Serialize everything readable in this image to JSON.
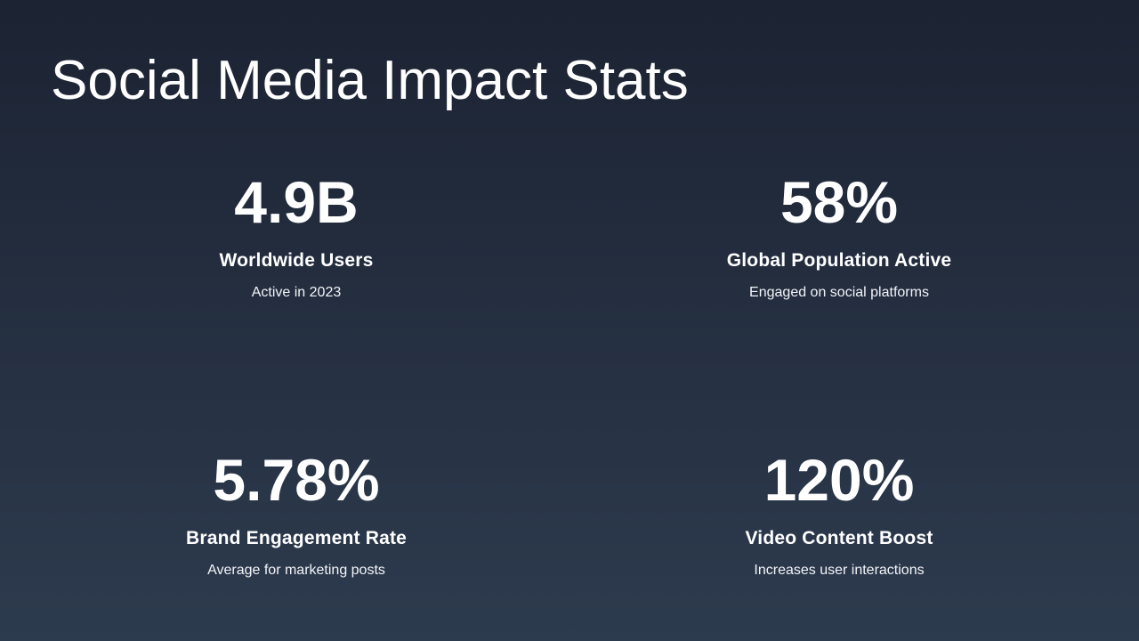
{
  "slide": {
    "title": "Social Media Impact Stats"
  },
  "stats": [
    {
      "value": "4.9B",
      "label": "Worldwide Users",
      "description": "Active in 2023"
    },
    {
      "value": "58%",
      "label": "Global Population Active",
      "description": "Engaged on social platforms"
    },
    {
      "value": "5.78%",
      "label": "Brand Engagement Rate",
      "description": "Average for marketing posts"
    },
    {
      "value": "120%",
      "label": "Video Content Boost",
      "description": "Increases user interactions"
    }
  ],
  "colors": {
    "background_top": "#1c2333",
    "background_bottom": "#2d3b4e",
    "text": "#ffffff"
  }
}
